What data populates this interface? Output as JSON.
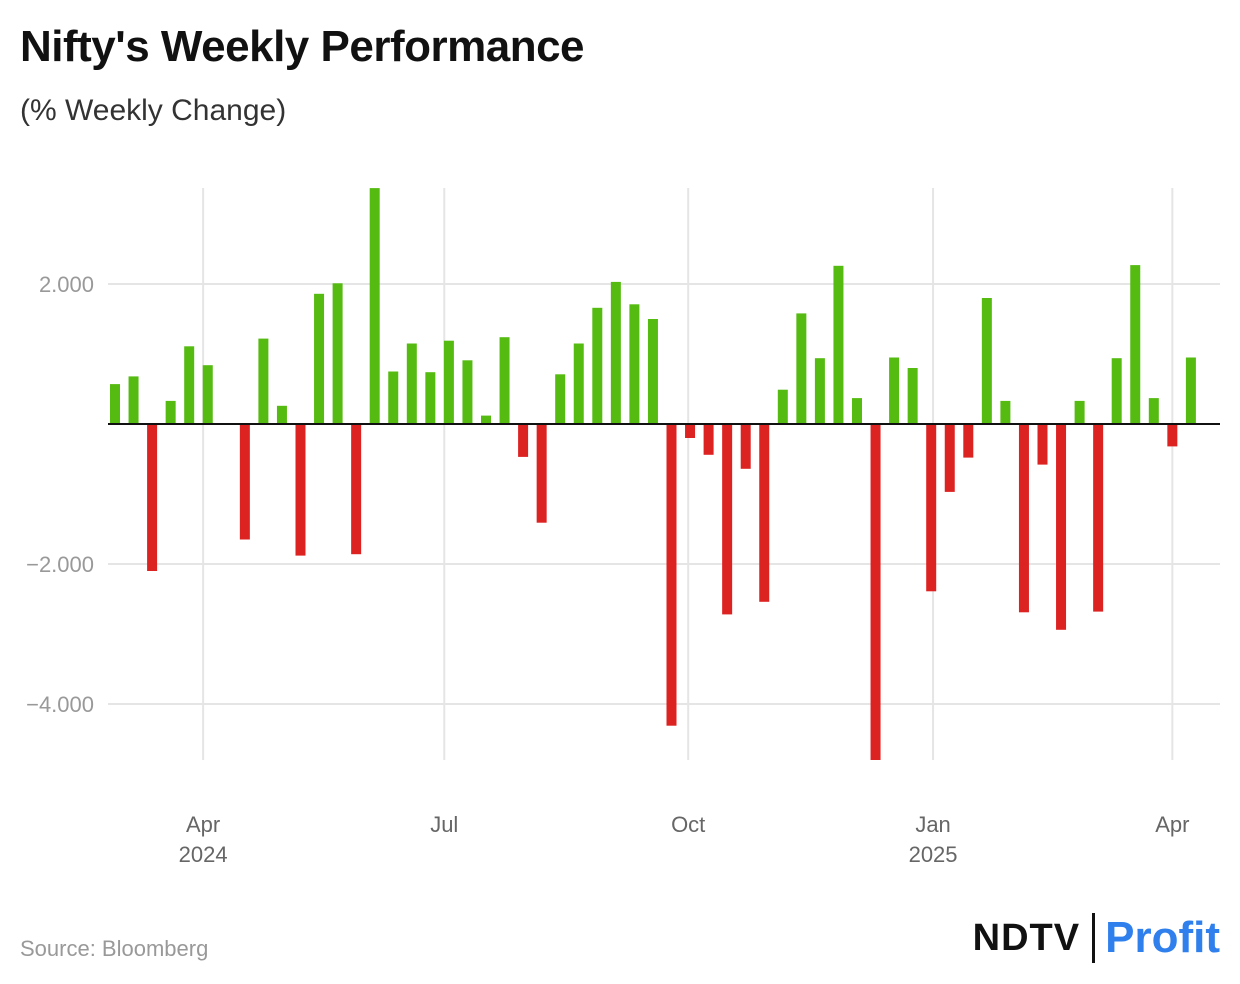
{
  "title": "Nifty's Weekly Performance",
  "subtitle": "(% Weekly Change)",
  "source": "Source: Bloomberg",
  "logo": {
    "left": "NDTV",
    "right": "Profit"
  },
  "colors": {
    "positive": "#55bb11",
    "negative": "#dd2222",
    "grid": "#e5e5e5",
    "zero_line": "#111111",
    "logo_accent": "#2f80ed",
    "logo_dot": "#e53935"
  },
  "chart_data": {
    "type": "bar",
    "title": "Nifty's Weekly Performance",
    "subtitle": "(% Weekly Change)",
    "xlabel": "",
    "ylabel": "% Weekly Change",
    "ylim": [
      -4.8,
      3.4
    ],
    "yticks": [
      2.0,
      -2.0,
      -4.0
    ],
    "ytick_labels": [
      "2.000",
      "−2.000",
      "−4.000"
    ],
    "x_ticks": [
      {
        "label": "Apr",
        "year": "2024",
        "week": 4.75
      },
      {
        "label": "Jul",
        "year": "",
        "week": 17.75
      },
      {
        "label": "Oct",
        "year": "",
        "week": 30.9
      },
      {
        "label": "Jan",
        "year": "2025",
        "week": 44.1
      },
      {
        "label": "Apr",
        "year": "",
        "week": 57.0
      }
    ],
    "values": [
      0.57,
      0.68,
      -2.1,
      0.33,
      1.11,
      0.84,
      0.0,
      -1.65,
      1.22,
      0.26,
      -1.88,
      1.86,
      2.01,
      -1.86,
      3.37,
      0.75,
      1.15,
      0.74,
      1.19,
      0.91,
      0.12,
      1.24,
      -0.47,
      -1.41,
      0.71,
      1.15,
      1.66,
      2.03,
      1.71,
      1.5,
      -4.31,
      -0.2,
      -0.44,
      -2.72,
      -0.64,
      -2.54,
      0.49,
      1.58,
      0.94,
      2.26,
      0.37,
      -4.8,
      0.95,
      0.8,
      -2.39,
      -0.97,
      -0.48,
      1.8,
      0.33,
      -2.69,
      -0.58,
      -2.94,
      0.33,
      -2.68,
      0.94,
      2.27,
      0.37,
      -0.32,
      0.95
    ]
  }
}
